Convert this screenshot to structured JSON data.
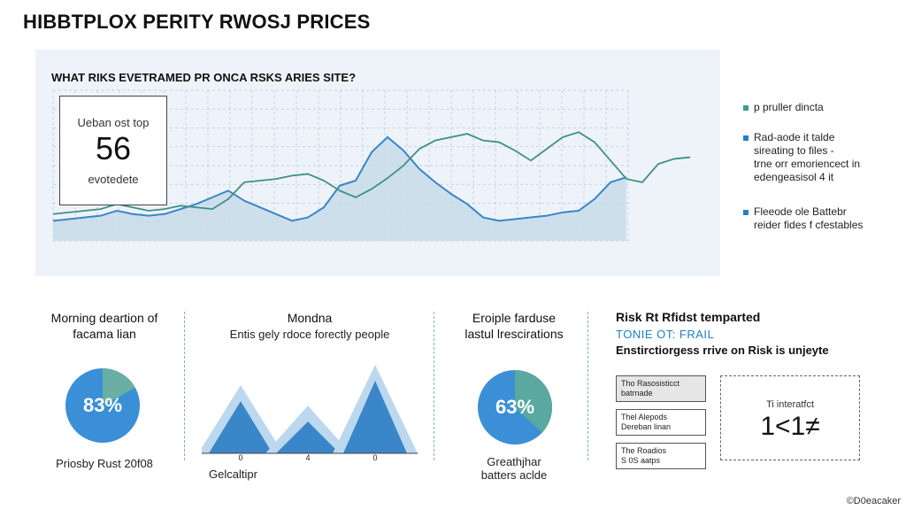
{
  "title": "HIBBTPLOX PERITY RWOSJ PRICES",
  "main_chart": {
    "heading": "WHAT RIKS EVETRAMED PR ONCA RSKS ARIES SITE?",
    "callout": {
      "label": "Ueban ost top",
      "value": "56",
      "sublabel": "evotedete"
    },
    "colors": {
      "line": "#3f8f8a",
      "area_fill": "#c8daea",
      "area_line": "#3a86c8"
    }
  },
  "legend": [
    {
      "text": "p pruller dincta",
      "color": "#3f9a8f"
    },
    {
      "text": "Rad-aode it talde\nsireating to files -\ntrne orr emoriencect in\nedengeasisol 4 it",
      "color": "#2a7fc4"
    },
    {
      "text": "Fleeode ole Battebr\nreider fides f cfestables",
      "color": "#2a7fc4"
    }
  ],
  "col1": {
    "title": "Morning deartion of\nfacama lian",
    "percent_label": "83%",
    "footer": "Priosby Rust 20f08",
    "colors": {
      "main": "#3a8fd6",
      "slice": "#6aaea4"
    }
  },
  "col2": {
    "title": "Mondna",
    "subtitle": "Entis gely rdoce forectly people",
    "ticks": [
      "0",
      "4",
      "0"
    ],
    "axis_label": "Gelcaltipr",
    "colors": {
      "dark": "#3a86c8",
      "light": "#bcd8ee"
    }
  },
  "col3": {
    "title": "Eroiple farduse\nlastul lrescirations",
    "percent_label": "63%",
    "footer": "Greathjhar\nbatters aclde",
    "colors": {
      "main": "#3a8fd6",
      "slice": "#5aa8a0"
    }
  },
  "col4": {
    "title": "Risk Rt Rfidst temparted",
    "subtitle": "TONIE OT: FRAIL",
    "desc": "Enstirctiorgess rrive on Risk is unjeyte",
    "boxes": [
      "Tho Rasosisticct\nbatrnade",
      "Thel Alepods\nDereban linan",
      "The Roadios\nS 0S aatps"
    ],
    "big_box_label": "Ti interatfct",
    "big_box_value": "1<1≠"
  },
  "footer_note": "©D0eacaker",
  "chart_data": [
    {
      "type": "area",
      "title": "WHAT RIKS EVETRAMED PR ONCA RSKS ARIES SITE?",
      "x": [
        0,
        1,
        2,
        3,
        4,
        5,
        6,
        7,
        8,
        9,
        10,
        11,
        12,
        13,
        14,
        15,
        16,
        17,
        18,
        19,
        20,
        21,
        22,
        23,
        24,
        25,
        26,
        27,
        28,
        29,
        30,
        31,
        32,
        33,
        34,
        35,
        36,
        37,
        38,
        39,
        40
      ],
      "series": [
        {
          "kind": "line",
          "values": [
            32,
            34,
            36,
            38,
            44,
            40,
            36,
            38,
            42,
            40,
            38,
            50,
            70,
            72,
            74,
            78,
            80,
            72,
            60,
            52,
            62,
            75,
            90,
            110,
            120,
            124,
            128,
            120,
            118,
            108,
            96,
            110,
            124,
            130,
            118,
            96,
            74,
            70,
            92,
            98,
            100
          ]
        },
        {
          "kind": "area",
          "values": [
            24,
            26,
            28,
            30,
            36,
            32,
            30,
            32,
            38,
            44,
            52,
            60,
            48,
            40,
            32,
            24,
            28,
            40,
            66,
            72,
            106,
            124,
            108,
            86,
            70,
            56,
            44,
            28,
            24,
            26,
            28,
            30,
            34,
            36,
            50,
            70,
            76,
            72,
            68,
            40,
            40
          ]
        }
      ],
      "ylim": [
        0,
        180
      ]
    },
    {
      "type": "pie",
      "values": [
        83,
        17
      ]
    },
    {
      "type": "area",
      "x": [
        0,
        4,
        0
      ],
      "values": [
        1,
        0.7,
        1.3
      ]
    },
    {
      "type": "pie",
      "values": [
        63,
        37
      ]
    }
  ]
}
